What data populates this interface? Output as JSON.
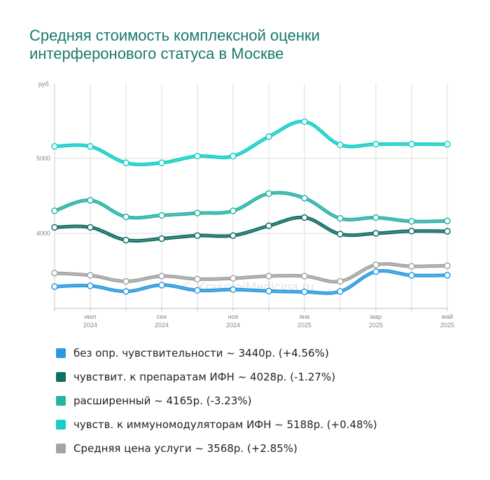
{
  "title": {
    "line1": "Средняя стоимость комплексной оценки",
    "line2": "интерферонового статуса в Москве"
  },
  "watermark": "© KrasotaiMedicina.ru",
  "chart_data": {
    "type": "line",
    "ylabel": "руб.",
    "ylim": [
      3000,
      6000
    ],
    "yticks": [
      {
        "value": 4000,
        "label": "4000"
      },
      {
        "value": 5000,
        "label": "5000"
      }
    ],
    "x": [
      "2024-06",
      "2024-07",
      "2024-08",
      "2024-09",
      "2024-10",
      "2024-11",
      "2024-12",
      "2025-01",
      "2025-02",
      "2025-03",
      "2025-04",
      "2025-05"
    ],
    "xticks": [
      {
        "index": 1,
        "month": "июл",
        "year": "2024"
      },
      {
        "index": 3,
        "month": "сен",
        "year": "2024"
      },
      {
        "index": 5,
        "month": "ноя",
        "year": "2024"
      },
      {
        "index": 7,
        "month": "янв",
        "year": "2025"
      },
      {
        "index": 9,
        "month": "мар",
        "year": "2025"
      },
      {
        "index": 11,
        "month": "май",
        "year": "2025"
      }
    ],
    "grid": true,
    "series": [
      {
        "name": "без опр. чувствительности ~ 3440р. (+4.56%)",
        "color": "#2b9ade",
        "values": [
          3290,
          3300,
          3225,
          3310,
          3240,
          3250,
          3230,
          3220,
          3225,
          3490,
          3440,
          3440
        ]
      },
      {
        "name": "чувствит. к препаратам ИФН ~ 4028р. (-1.27%)",
        "color": "#116e62",
        "values": [
          4080,
          4080,
          3910,
          3930,
          3970,
          3970,
          4100,
          4210,
          3990,
          4000,
          4030,
          4028
        ]
      },
      {
        "name": "расширенный ~ 4165р. (-3.23%)",
        "color": "#2ab3a5",
        "values": [
          4300,
          4440,
          4220,
          4240,
          4270,
          4300,
          4530,
          4470,
          4200,
          4210,
          4160,
          4165
        ]
      },
      {
        "name": "чувств. к иммуномодуляторам ИФН ~ 5188р. (+0.48%)",
        "color": "#16cfc6",
        "values": [
          5160,
          5160,
          4940,
          4940,
          5030,
          5030,
          5290,
          5490,
          5180,
          5190,
          5190,
          5188
        ]
      },
      {
        "name": "Средняя цена услуги ~ 3568р. (+2.85%)",
        "color": "#a4a4a4",
        "values": [
          3470,
          3440,
          3360,
          3430,
          3390,
          3400,
          3430,
          3430,
          3360,
          3580,
          3560,
          3568
        ]
      }
    ]
  }
}
